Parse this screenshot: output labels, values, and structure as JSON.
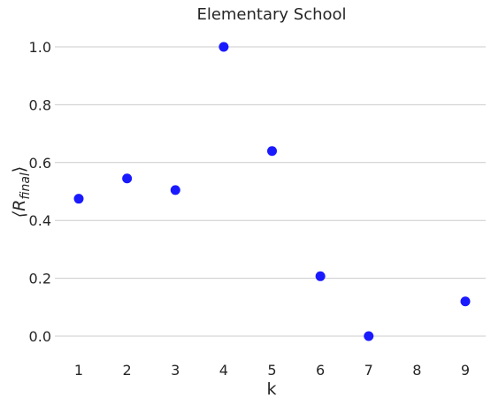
{
  "chart_data": {
    "type": "scatter",
    "title": "Elementary School",
    "xlabel": "k",
    "ylabel_main": "⟨R",
    "ylabel_sub": "final",
    "ylabel_close": "⟩",
    "x": [
      1,
      2,
      3,
      4,
      5,
      6,
      7,
      9
    ],
    "y": [
      0.475,
      0.545,
      0.505,
      1.0,
      0.64,
      0.207,
      0.0,
      0.12
    ],
    "x_ticks": [
      "1",
      "2",
      "3",
      "4",
      "5",
      "6",
      "7",
      "8",
      "9"
    ],
    "y_ticks": [
      "0.0",
      "0.2",
      "0.4",
      "0.6",
      "0.8",
      "1.0"
    ],
    "xlim": [
      0.5,
      9.5
    ],
    "ylim": [
      -0.07,
      1.07
    ],
    "grid": "horizontal",
    "point_color": "#1a1aff",
    "grid_color": "#cccccc"
  }
}
